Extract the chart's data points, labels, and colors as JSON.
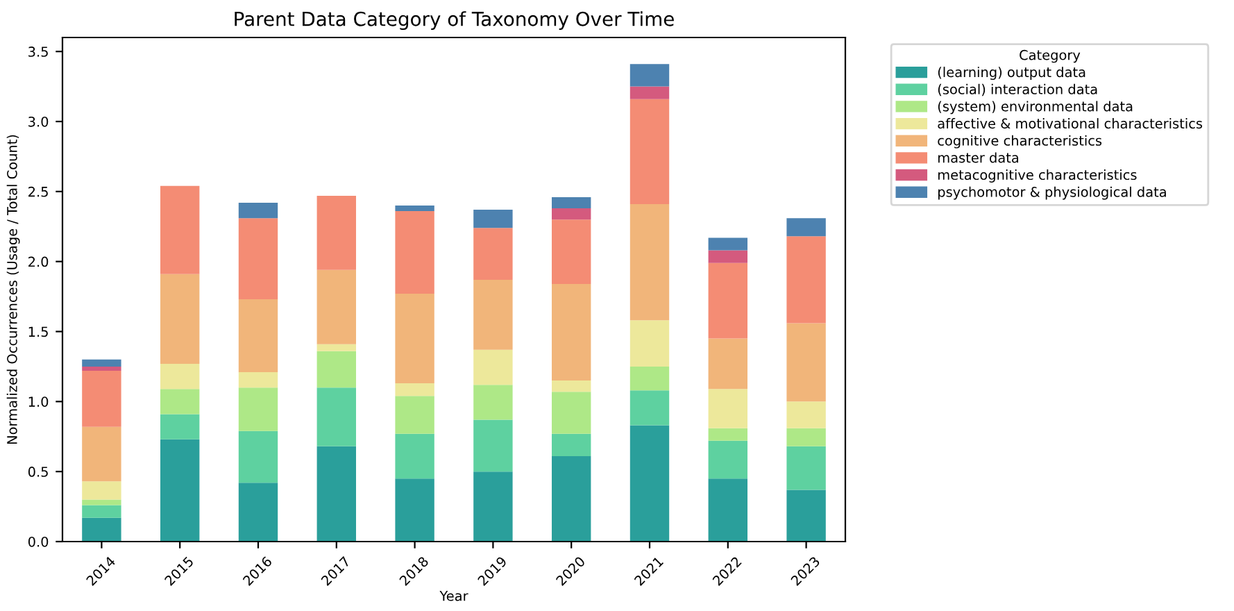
{
  "chart_data": {
    "type": "bar",
    "stacked": true,
    "title": "Parent Data Category of Taxonomy Over Time",
    "xlabel": "Year",
    "ylabel": "Normalized Occurrences (Usage / Total Count)",
    "legend_title": "Category",
    "legend": "top right",
    "grid": false,
    "categories": [
      "2014",
      "2015",
      "2016",
      "2017",
      "2018",
      "2019",
      "2020",
      "2021",
      "2022",
      "2023"
    ],
    "ylim": [
      0,
      3.6
    ],
    "yticks": [
      {
        "value": 0,
        "label": "0.0"
      },
      0.5,
      {
        "value": 1,
        "label": "1.0"
      },
      1.5,
      {
        "value": 2,
        "label": "2.0"
      },
      2.5,
      {
        "value": 3,
        "label": "3.0"
      },
      3.5
    ],
    "series": [
      {
        "name": "(learning) output data",
        "color": "#2a9f9b",
        "values": [
          0.17,
          0.73,
          0.42,
          0.68,
          0.45,
          0.5,
          0.61,
          0.83,
          0.45,
          0.37
        ]
      },
      {
        "name": "(social) interaction data",
        "color": "#5ed1a0",
        "values": [
          0.09,
          0.18,
          0.37,
          0.42,
          0.32,
          0.37,
          0.16,
          0.25,
          0.27,
          0.31
        ]
      },
      {
        "name": "(system) environmental data",
        "color": "#aee887",
        "values": [
          0.04,
          0.18,
          0.31,
          0.26,
          0.27,
          0.25,
          0.3,
          0.17,
          0.09,
          0.13
        ]
      },
      {
        "name": "affective & motivational characteristics",
        "color": "#ede89b",
        "values": [
          0.13,
          0.18,
          0.11,
          0.05,
          0.09,
          0.25,
          0.08,
          0.33,
          0.28,
          0.19
        ]
      },
      {
        "name": "cognitive characteristics",
        "color": "#f1b57a",
        "values": [
          0.39,
          0.64,
          0.52,
          0.53,
          0.64,
          0.5,
          0.69,
          0.83,
          0.36,
          0.56
        ]
      },
      {
        "name": "master data",
        "color": "#f48c74",
        "values": [
          0.4,
          0.63,
          0.58,
          0.53,
          0.59,
          0.37,
          0.46,
          0.75,
          0.54,
          0.62
        ]
      },
      {
        "name": "metacognitive characteristics",
        "color": "#d45a7e",
        "values": [
          0.03,
          0,
          0,
          0,
          0,
          0,
          0.08,
          0.09,
          0.09,
          0
        ]
      },
      {
        "name": "psychomotor & physiological data",
        "color": "#4d82b0",
        "values": [
          0.05,
          0,
          0.11,
          0,
          0.04,
          0.13,
          0.08,
          0.16,
          0.09,
          0.13
        ]
      }
    ]
  }
}
